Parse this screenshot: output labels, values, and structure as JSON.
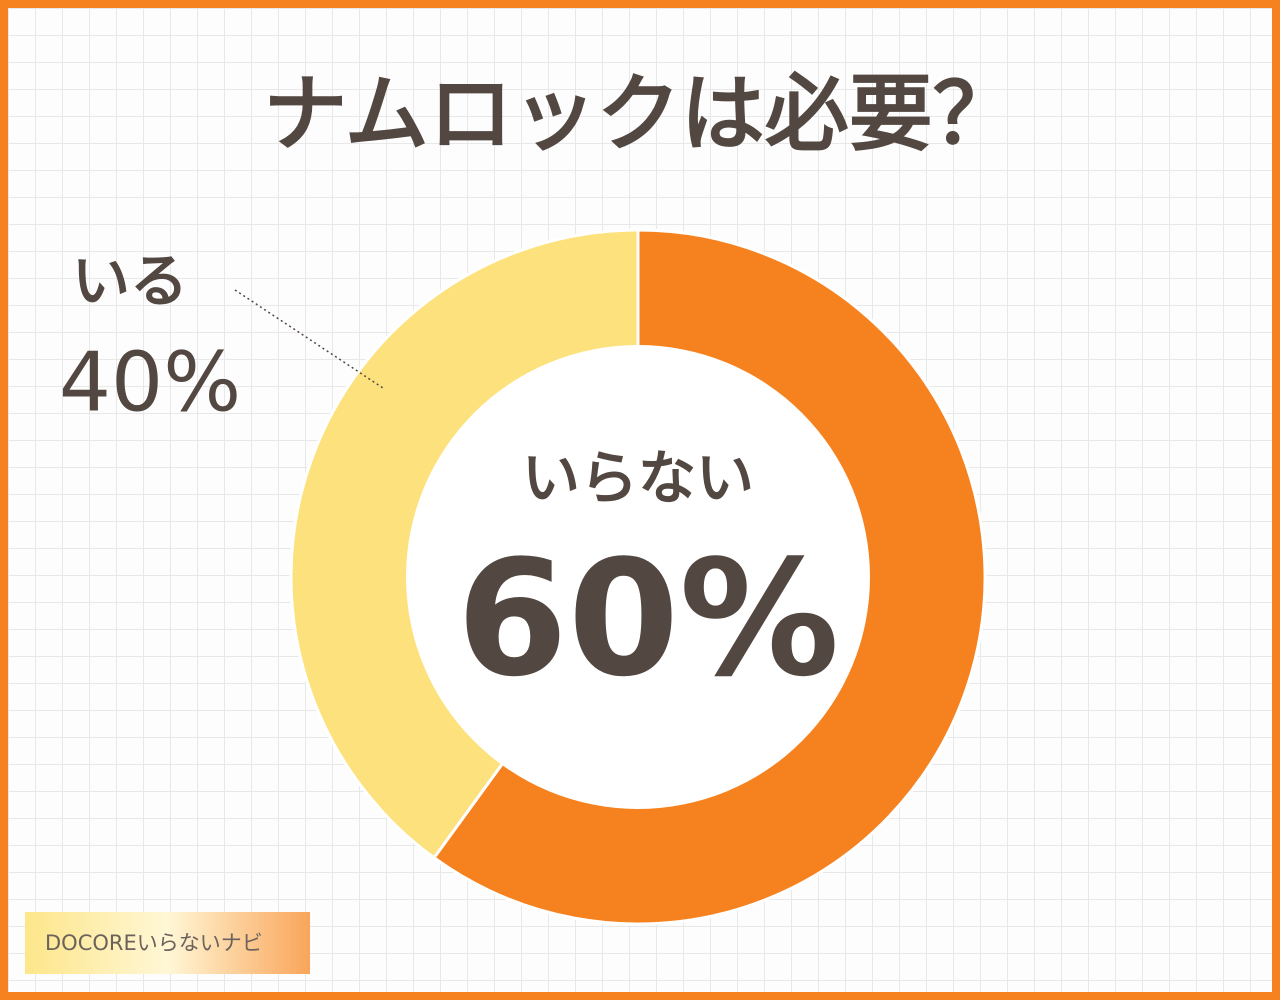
{
  "chart_data": {
    "type": "donut",
    "title": "ナムロックは必要？",
    "categories": [
      "いらない",
      "いる"
    ],
    "values": [
      60,
      40
    ],
    "value_labels": [
      "60%",
      "40%"
    ],
    "colors": [
      "#f6821f",
      "#fce17c"
    ],
    "watermark": "DOCOREいらないナビ"
  }
}
